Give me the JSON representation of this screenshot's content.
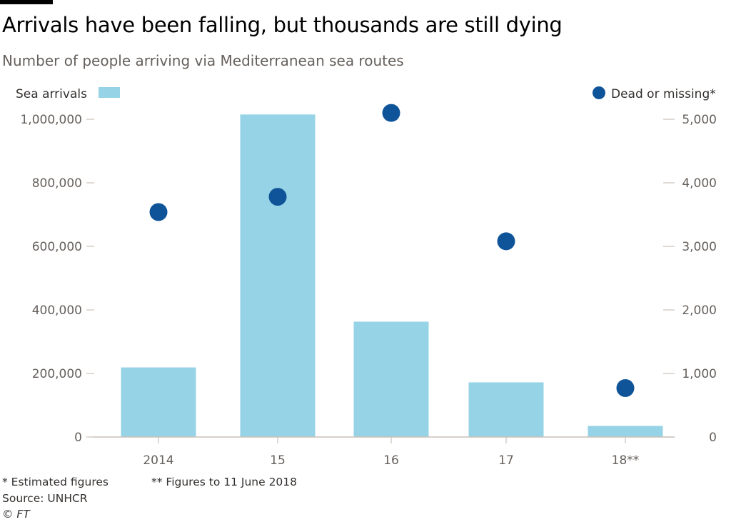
{
  "header": {
    "title": "Arrivals have been falling, but thousands are still dying",
    "subtitle": "Number of people arriving via Mediterranean sea routes"
  },
  "colors": {
    "bar": "#96d3e6",
    "dot": "#0f5499",
    "axis_text": "#66605c",
    "axis_line": "#ccc1b7"
  },
  "chart_data": {
    "type": "bar",
    "categories": [
      "2014",
      "15",
      "16",
      "17",
      "18**"
    ],
    "series": [
      {
        "name": "Sea arrivals",
        "type": "bar",
        "axis": "left",
        "values": [
          219000,
          1015000,
          363000,
          172000,
          35000
        ]
      },
      {
        "name": "Dead or missing*",
        "type": "scatter",
        "axis": "right",
        "values": [
          3540,
          3780,
          5100,
          3080,
          770
        ]
      }
    ],
    "left_axis": {
      "ticks": [
        "0",
        "200,000",
        "400,000",
        "600,000",
        "800,000",
        "1,000,000"
      ],
      "ylim": [
        0,
        1000000
      ]
    },
    "right_axis": {
      "ticks": [
        "0",
        "1,000",
        "2,000",
        "3,000",
        "4,000",
        "5,000"
      ],
      "ylim": [
        0,
        5000
      ]
    },
    "legend": {
      "left_label": "Sea arrivals",
      "right_label": "Dead or missing*",
      "placement": "top"
    },
    "grid": false
  },
  "footer": {
    "note1": "* Estimated figures",
    "note2": "** Figures to 11 June 2018",
    "source": "Source: UNHCR",
    "copyright": "© FT"
  }
}
